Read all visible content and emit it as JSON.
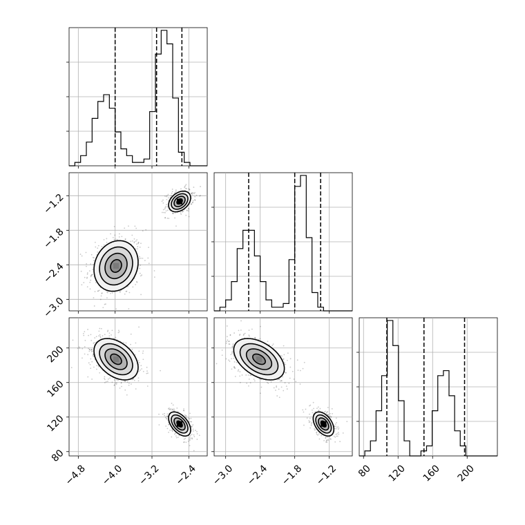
{
  "chart_data": {
    "type": "corner",
    "grid": true,
    "parameters": [
      {
        "ticks": [
          -4.8,
          -4.0,
          -3.2,
          -2.4
        ],
        "tick_labels": [
          "−4.8",
          "−4.0",
          "−3.2",
          "−2.4"
        ],
        "range": [
          -5.0,
          -2.0
        ],
        "quantiles": [
          -4.0,
          -3.1,
          -2.55
        ],
        "histogram": {
          "bin_start": -5.0,
          "bin_width": 0.125,
          "counts": [
            0,
            1,
            3,
            7,
            14,
            19,
            21,
            17,
            10,
            5,
            3,
            1,
            1,
            2,
            16,
            33,
            40,
            36,
            20,
            4,
            1,
            0,
            0,
            0
          ]
        }
      },
      {
        "ticks": [
          -3.0,
          -2.4,
          -1.8,
          -1.2
        ],
        "tick_labels": [
          "−3.0",
          "−2.4",
          "−1.8",
          "−1.2"
        ],
        "range": [
          -3.2,
          -0.8
        ],
        "quantiles": [
          -2.6,
          -1.8,
          -1.35
        ],
        "histogram": {
          "bin_start": -3.2,
          "bin_width": 0.1,
          "counts": [
            0,
            1,
            3,
            8,
            17,
            22,
            22,
            15,
            8,
            3,
            1,
            1,
            2,
            14,
            34,
            37,
            20,
            5,
            1,
            0,
            0,
            0,
            0,
            0
          ]
        }
      },
      {
        "ticks": [
          80,
          120,
          160,
          200
        ],
        "tick_labels": [
          "80",
          "120",
          "160",
          "200"
        ],
        "range": [
          75,
          235
        ],
        "quantiles": [
          107,
          150,
          197
        ],
        "histogram": {
          "bin_start": 75,
          "bin_width": 6.5,
          "counts": [
            0,
            1,
            3,
            9,
            16,
            27,
            22,
            11,
            3,
            0,
            0,
            1,
            2,
            9,
            16,
            17,
            12,
            5,
            2,
            0,
            0,
            0,
            0,
            0,
            0
          ]
        }
      }
    ],
    "clusters": [
      {
        "center": [
          -3.98,
          -2.42,
          187
        ],
        "sigma": [
          0.24,
          0.22,
          12
        ],
        "corr": [
          [
            1,
            0.15,
            -0.4
          ],
          [
            0.15,
            1,
            -0.45
          ],
          [
            -0.4,
            -0.45,
            1
          ]
        ]
      },
      {
        "center": [
          -2.6,
          -1.3,
          112
        ],
        "sigma": [
          0.12,
          0.09,
          7
        ],
        "corr": [
          [
            1,
            0.35,
            -0.5
          ],
          [
            0.35,
            1,
            -0.45
          ],
          [
            -0.5,
            -0.45,
            1
          ]
        ]
      }
    ],
    "contour_levels_sigma": [
      0.5,
      1.0,
      1.5,
      2.0
    ]
  }
}
